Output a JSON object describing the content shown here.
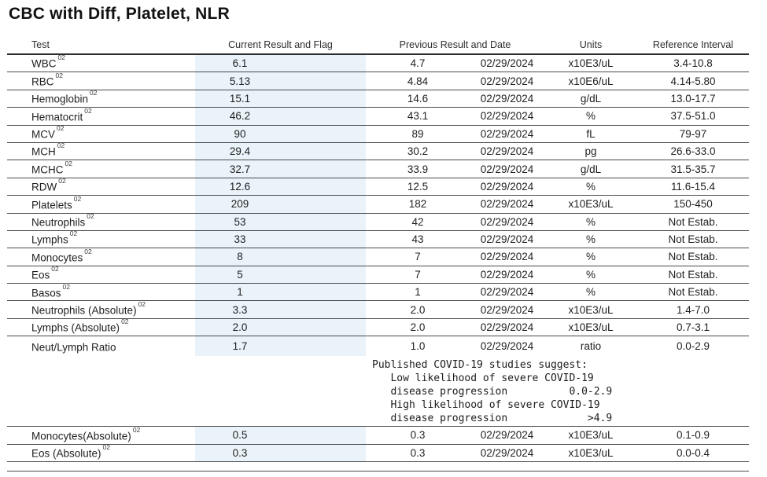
{
  "title": "CBC with Diff, Platelet, NLR",
  "colors": {
    "highlight_column": "#eaf3f9",
    "border": "#4a4a4a"
  },
  "table": {
    "headers": {
      "test": "Test",
      "current": "Current Result and Flag",
      "previous": "Previous Result and Date",
      "units": "Units",
      "reference": "Reference Interval"
    },
    "rows_main": [
      {
        "test": "WBC",
        "sup": "02",
        "current": "6.1",
        "previous": "4.7",
        "date": "02/29/2024",
        "units": "x10E3/uL",
        "reference": "3.4-10.8"
      },
      {
        "test": "RBC",
        "sup": "02",
        "current": "5.13",
        "previous": "4.84",
        "date": "02/29/2024",
        "units": "x10E6/uL",
        "reference": "4.14-5.80"
      },
      {
        "test": "Hemoglobin",
        "sup": "02",
        "current": "15.1",
        "previous": "14.6",
        "date": "02/29/2024",
        "units": "g/dL",
        "reference": "13.0-17.7"
      },
      {
        "test": "Hematocrit",
        "sup": "02",
        "current": "46.2",
        "previous": "43.1",
        "date": "02/29/2024",
        "units": "%",
        "reference": "37.5-51.0"
      },
      {
        "test": "MCV",
        "sup": "02",
        "current": "90",
        "previous": "89",
        "date": "02/29/2024",
        "units": "fL",
        "reference": "79-97"
      },
      {
        "test": "MCH",
        "sup": "02",
        "current": "29.4",
        "previous": "30.2",
        "date": "02/29/2024",
        "units": "pg",
        "reference": "26.6-33.0"
      },
      {
        "test": "MCHC",
        "sup": "02",
        "current": "32.7",
        "previous": "33.9",
        "date": "02/29/2024",
        "units": "g/dL",
        "reference": "31.5-35.7"
      },
      {
        "test": "RDW",
        "sup": "02",
        "current": "12.6",
        "previous": "12.5",
        "date": "02/29/2024",
        "units": "%",
        "reference": "11.6-15.4"
      },
      {
        "test": "Platelets",
        "sup": "02",
        "current": "209",
        "previous": "182",
        "date": "02/29/2024",
        "units": "x10E3/uL",
        "reference": "150-450"
      },
      {
        "test": "Neutrophils",
        "sup": "02",
        "current": "53",
        "previous": "42",
        "date": "02/29/2024",
        "units": "%",
        "reference": "Not Estab."
      },
      {
        "test": "Lymphs",
        "sup": "02",
        "current": "33",
        "previous": "43",
        "date": "02/29/2024",
        "units": "%",
        "reference": "Not Estab."
      },
      {
        "test": "Monocytes",
        "sup": "02",
        "current": "8",
        "previous": "7",
        "date": "02/29/2024",
        "units": "%",
        "reference": "Not Estab."
      },
      {
        "test": "Eos",
        "sup": "02",
        "current": "5",
        "previous": "7",
        "date": "02/29/2024",
        "units": "%",
        "reference": "Not Estab."
      },
      {
        "test": "Basos",
        "sup": "02",
        "current": "1",
        "previous": "1",
        "date": "02/29/2024",
        "units": "%",
        "reference": "Not Estab."
      },
      {
        "test": "Neutrophils (Absolute)",
        "sup": "02",
        "current": "3.3",
        "previous": "2.0",
        "date": "02/29/2024",
        "units": "x10E3/uL",
        "reference": "1.4-7.0"
      },
      {
        "test": "Lymphs (Absolute)",
        "sup": "02",
        "current": "2.0",
        "previous": "2.0",
        "date": "02/29/2024",
        "units": "x10E3/uL",
        "reference": "0.7-3.1"
      },
      {
        "test": "Neut/Lymph Ratio",
        "sup": "",
        "current": "1.7",
        "previous": "1.0",
        "date": "02/29/2024",
        "units": "ratio",
        "reference": "0.0-2.9",
        "no_border": true
      }
    ],
    "note_lines": [
      "Published COVID-19 studies suggest:",
      "   Low likelihood of severe COVID-19",
      "   disease progression          0.0-2.9",
      "   High likelihood of severe COVID-19",
      "   disease progression             >4.9"
    ],
    "rows_footer": [
      {
        "test": "Monocytes(Absolute)",
        "sup": "02",
        "current": "0.5",
        "previous": "0.3",
        "date": "02/29/2024",
        "units": "x10E3/uL",
        "reference": "0.1-0.9"
      },
      {
        "test": "Eos (Absolute)",
        "sup": "02",
        "current": "0.3",
        "previous": "0.3",
        "date": "02/29/2024",
        "units": "x10E3/uL",
        "reference": "0.0-0.4"
      }
    ]
  }
}
